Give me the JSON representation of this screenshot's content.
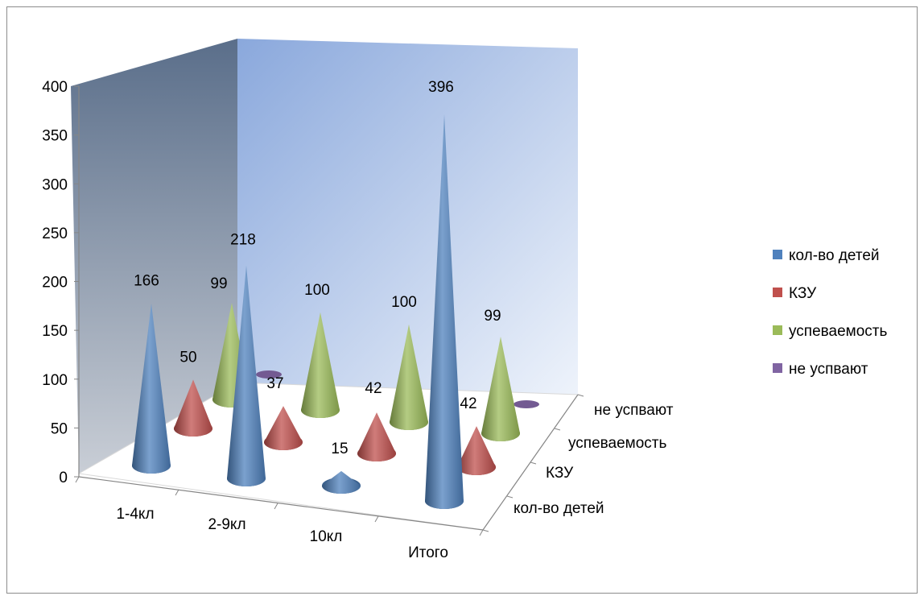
{
  "chart_data": {
    "type": "bar",
    "style": "3d-cone",
    "categories": [
      "1-4кл",
      "2-9кл",
      "10кл",
      "Итого"
    ],
    "series": [
      {
        "name": "кол-во детей",
        "color": "#4f81bd",
        "values": [
          166,
          218,
          15,
          396
        ]
      },
      {
        "name": "КЗУ",
        "color": "#c0504d",
        "values": [
          50,
          37,
          42,
          42
        ]
      },
      {
        "name": "успеваемость",
        "color": "#9bbb59",
        "values": [
          99,
          100,
          100,
          99
        ]
      },
      {
        "name": "не успвают",
        "color": "#8064a2",
        "values": [
          null,
          null,
          null,
          null
        ]
      }
    ],
    "depth_labels": [
      "кол-во детей",
      "КЗУ",
      "успеваемость",
      "не успвают"
    ],
    "data_labels": [
      [
        "166",
        "218",
        "15",
        "396"
      ],
      [
        "50",
        "37",
        "42",
        "42"
      ],
      [
        "99",
        "100",
        "100",
        "99"
      ],
      [
        "",
        "",
        "",
        ""
      ]
    ],
    "y_ticks": [
      "0",
      "50",
      "100",
      "150",
      "200",
      "250",
      "300",
      "350",
      "400"
    ],
    "ylim": [
      0,
      400
    ],
    "legend_position": "right",
    "legend": [
      {
        "label": "кол-во детей",
        "color": "#4f81bd"
      },
      {
        "label": "КЗУ",
        "color": "#c0504d"
      },
      {
        "label": "успеваемость",
        "color": "#9bbb59"
      },
      {
        "label": "не успвают",
        "color": "#8064a2"
      }
    ]
  }
}
